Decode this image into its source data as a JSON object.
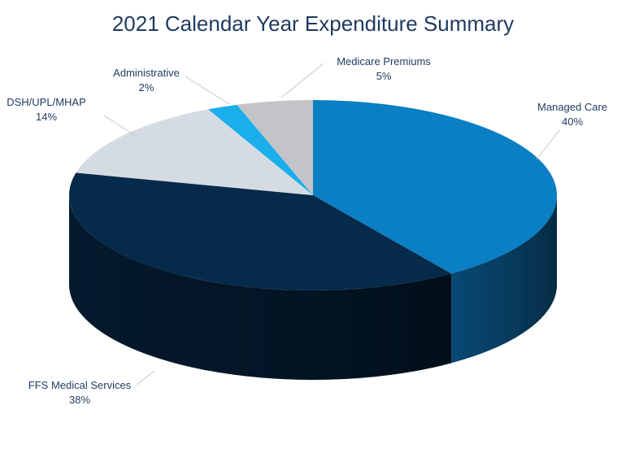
{
  "chart_data": {
    "type": "pie",
    "title": "2021 Calendar Year Expenditure Summary",
    "slices": [
      {
        "name": "Managed Care",
        "value": 40,
        "label": "40%",
        "color": "#0a7fc3",
        "side": "#094d7a"
      },
      {
        "name": "FFS Medical Services",
        "value": 38,
        "label": "38%",
        "color": "#062a4a",
        "side": "#041b30"
      },
      {
        "name": "DSH/UPL/MHAP",
        "value": 14,
        "label": "14%",
        "color": "#d5dbe3",
        "side": "#a9b2bd"
      },
      {
        "name": "Administrative",
        "value": 2,
        "label": "2%",
        "color": "#1aaeea",
        "side": "#127fab"
      },
      {
        "name": "Medicare Premiums",
        "value": 5,
        "label": "5%",
        "color": "#c2c4c7",
        "side": "#8f9194"
      }
    ]
  }
}
